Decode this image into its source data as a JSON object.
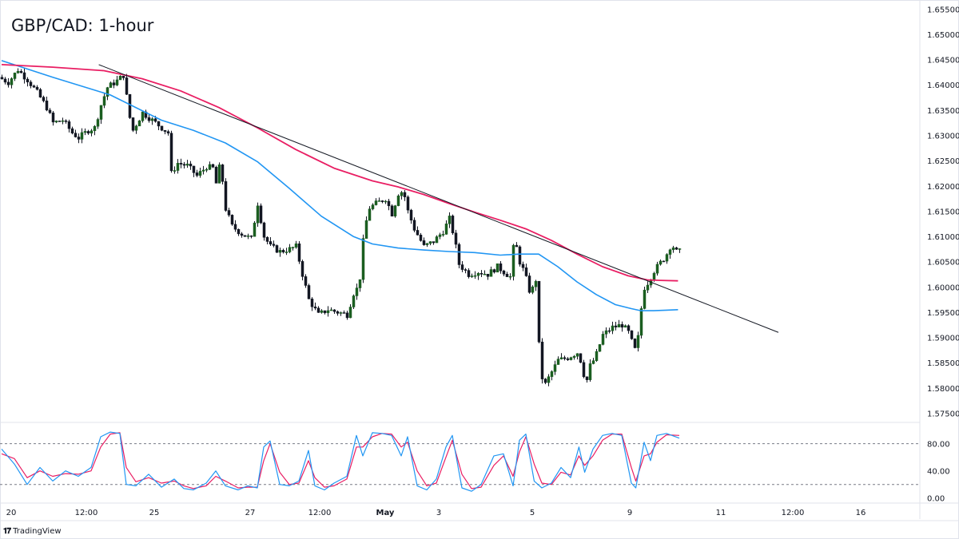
{
  "title": "GBP/CAD: 1-hour",
  "footer": {
    "brand": "TradingView",
    "logo_icon": "tradingview-logo-icon"
  },
  "colors": {
    "bull": "#26a69a",
    "bear": "#131722",
    "candle_body_bull": "#1b5e20",
    "ma_fast": "#2196f3",
    "ma_slow": "#e91e63",
    "trendline": "#131722",
    "stoch_k": "#2196f3",
    "stoch_d": "#e91e63"
  },
  "chart_data": [
    {
      "type": "candlestick",
      "title": "GBP/CAD: 1-hour",
      "ylim": [
        1.5735,
        1.656
      ],
      "y_ticks": [
        "1.65500",
        "1.65000",
        "1.64500",
        "1.64000",
        "1.63500",
        "1.63000",
        "1.62500",
        "1.62000",
        "1.61500",
        "1.61000",
        "1.60500",
        "1.60000",
        "1.59500",
        "1.59000",
        "1.58500",
        "1.58000",
        "1.57500"
      ],
      "x_ticks": [
        "20",
        "12:00",
        "25",
        "27",
        "12:00",
        "May",
        "3",
        "5",
        "9",
        "11",
        "12:00",
        "16"
      ],
      "price_path": [
        [
          0,
          1.6415
        ],
        [
          1.5,
          1.6405
        ],
        [
          3,
          1.643
        ],
        [
          4.5,
          1.641
        ],
        [
          6,
          1.6385
        ],
        [
          7.5,
          1.6355
        ],
        [
          8.5,
          1.6325
        ],
        [
          10,
          1.633
        ],
        [
          11.5,
          1.6305
        ],
        [
          12.5,
          1.6295
        ],
        [
          14,
          1.631
        ],
        [
          15,
          1.6315
        ],
        [
          16,
          1.636
        ],
        [
          17,
          1.6395
        ],
        [
          18.5,
          1.6408
        ],
        [
          19.6,
          1.642
        ],
        [
          20.3,
          1.6345
        ],
        [
          21,
          1.631
        ],
        [
          22.5,
          1.6345
        ],
        [
          24,
          1.633
        ],
        [
          25.5,
          1.6315
        ],
        [
          26.5,
          1.6305
        ],
        [
          27,
          1.6225
        ],
        [
          28,
          1.6245
        ],
        [
          29.5,
          1.624
        ],
        [
          31,
          1.622
        ],
        [
          32.5,
          1.6238
        ],
        [
          33.5,
          1.6235
        ],
        [
          34,
          1.6205
        ],
        [
          34.8,
          1.6255
        ],
        [
          35.2,
          1.6165
        ],
        [
          36.5,
          1.612
        ],
        [
          38,
          1.6105
        ],
        [
          39.5,
          1.6095
        ],
        [
          40.5,
          1.6165
        ],
        [
          41.5,
          1.61
        ],
        [
          42.5,
          1.608
        ],
        [
          44,
          1.607
        ],
        [
          45.5,
          1.6075
        ],
        [
          46.5,
          1.608
        ],
        [
          47.5,
          1.6025
        ],
        [
          48.5,
          1.5975
        ],
        [
          50,
          1.5945
        ],
        [
          51.5,
          1.5955
        ],
        [
          53,
          1.595
        ],
        [
          54.5,
          1.5945
        ],
        [
          55.8,
          1.6
        ],
        [
          56.3,
          1.599
        ],
        [
          57,
          1.609
        ],
        [
          57.8,
          1.6155
        ],
        [
          59,
          1.6165
        ],
        [
          60.5,
          1.6175
        ],
        [
          61.5,
          1.6145
        ],
        [
          62.5,
          1.6185
        ],
        [
          63.3,
          1.619
        ],
        [
          64,
          1.615
        ],
        [
          65,
          1.6115
        ],
        [
          66.5,
          1.608
        ],
        [
          68,
          1.609
        ],
        [
          69.5,
          1.611
        ],
        [
          70.5,
          1.6135
        ],
        [
          71.2,
          1.61
        ],
        [
          72,
          1.6045
        ],
        [
          73.5,
          1.6025
        ],
        [
          75,
          1.603
        ],
        [
          76.5,
          1.6025
        ],
        [
          78,
          1.604
        ],
        [
          79,
          1.603
        ],
        [
          80,
          1.602
        ],
        [
          80.7,
          1.61
        ],
        [
          81.3,
          1.6055
        ],
        [
          82,
          1.6035
        ],
        [
          82.8,
          1.6005
        ],
        [
          83.3,
          1.5975
        ],
        [
          83.9,
          1.604
        ],
        [
          84.6,
          1.586
        ],
        [
          85.2,
          1.58
        ],
        [
          86,
          1.582
        ],
        [
          87.5,
          1.5855
        ],
        [
          89,
          1.586
        ],
        [
          90.5,
          1.587
        ],
        [
          91.3,
          1.5845
        ],
        [
          91.8,
          1.58
        ],
        [
          92.3,
          1.584
        ],
        [
          93.3,
          1.586
        ],
        [
          94.5,
          1.5905
        ],
        [
          96,
          1.592
        ],
        [
          97.5,
          1.5925
        ],
        [
          98.5,
          1.591
        ],
        [
          99.2,
          1.5885
        ],
        [
          99.7,
          1.587
        ],
        [
          100.2,
          1.592
        ],
        [
          100.8,
          1.5995
        ],
        [
          101.6,
          1.601
        ],
        [
          102.4,
          1.603
        ],
        [
          103.3,
          1.6045
        ],
        [
          104.3,
          1.606
        ],
        [
          105.2,
          1.6085
        ],
        [
          106,
          1.607
        ]
      ],
      "ma_fast": [
        [
          0,
          1.6448
        ],
        [
          8,
          1.6415
        ],
        [
          17,
          1.638
        ],
        [
          25,
          1.633
        ],
        [
          30,
          1.631
        ],
        [
          35,
          1.6285
        ],
        [
          40,
          1.6248
        ],
        [
          45,
          1.6195
        ],
        [
          50,
          1.614
        ],
        [
          55,
          1.61
        ],
        [
          58,
          1.6085
        ],
        [
          62,
          1.6077
        ],
        [
          66,
          1.6073
        ],
        [
          70,
          1.607
        ],
        [
          74,
          1.6068
        ],
        [
          78,
          1.6063
        ],
        [
          81,
          1.6065
        ],
        [
          84,
          1.6065
        ],
        [
          87,
          1.604
        ],
        [
          90,
          1.601
        ],
        [
          93,
          1.5985
        ],
        [
          96,
          1.5965
        ],
        [
          98.5,
          1.5957
        ],
        [
          100,
          1.5953
        ],
        [
          102,
          1.5953
        ],
        [
          104,
          1.5954
        ],
        [
          105.8,
          1.5955
        ]
      ],
      "ma_slow": [
        [
          0,
          1.644
        ],
        [
          8,
          1.6435
        ],
        [
          16,
          1.6428
        ],
        [
          22,
          1.6412
        ],
        [
          28,
          1.6388
        ],
        [
          34,
          1.6355
        ],
        [
          40,
          1.6315
        ],
        [
          46,
          1.6272
        ],
        [
          52,
          1.6235
        ],
        [
          58,
          1.621
        ],
        [
          62,
          1.6198
        ],
        [
          66,
          1.6183
        ],
        [
          70,
          1.6165
        ],
        [
          74,
          1.6148
        ],
        [
          78,
          1.6132
        ],
        [
          82,
          1.6115
        ],
        [
          86,
          1.6092
        ],
        [
          90,
          1.6065
        ],
        [
          94,
          1.604
        ],
        [
          98,
          1.6022
        ],
        [
          101,
          1.6014
        ],
        [
          103,
          1.6013
        ],
        [
          105.8,
          1.6012
        ]
      ],
      "trendline": [
        [
          15.2,
          1.644
        ],
        [
          121.5,
          1.591
        ]
      ]
    },
    {
      "type": "line",
      "name": "stochastic",
      "ylim": [
        -5,
        110
      ],
      "y_ticks": [
        "80.00",
        "40.00",
        "0.00"
      ],
      "levels": [
        80,
        20
      ],
      "k": [
        [
          0,
          72
        ],
        [
          2,
          50
        ],
        [
          4,
          20
        ],
        [
          6,
          45
        ],
        [
          8,
          25
        ],
        [
          10,
          40
        ],
        [
          12,
          32
        ],
        [
          14,
          45
        ],
        [
          15.5,
          90
        ],
        [
          17,
          97
        ],
        [
          18.5,
          95
        ],
        [
          19.5,
          20
        ],
        [
          21,
          18
        ],
        [
          23,
          35
        ],
        [
          25,
          16
        ],
        [
          27,
          28
        ],
        [
          28.5,
          14
        ],
        [
          30,
          12
        ],
        [
          32,
          22
        ],
        [
          33.5,
          40
        ],
        [
          35,
          18
        ],
        [
          37,
          12
        ],
        [
          38.5,
          18
        ],
        [
          40,
          15
        ],
        [
          41,
          75
        ],
        [
          42,
          84
        ],
        [
          43.5,
          20
        ],
        [
          45,
          18
        ],
        [
          46.5,
          25
        ],
        [
          48,
          70
        ],
        [
          49,
          18
        ],
        [
          50.5,
          12
        ],
        [
          52,
          22
        ],
        [
          54,
          32
        ],
        [
          55.5,
          92
        ],
        [
          56.5,
          62
        ],
        [
          58,
          96
        ],
        [
          59.5,
          95
        ],
        [
          61,
          92
        ],
        [
          62.5,
          62
        ],
        [
          63.5,
          90
        ],
        [
          65,
          18
        ],
        [
          66.5,
          12
        ],
        [
          68,
          28
        ],
        [
          69.5,
          75
        ],
        [
          70.5,
          92
        ],
        [
          72,
          15
        ],
        [
          73.5,
          10
        ],
        [
          75,
          20
        ],
        [
          77,
          62
        ],
        [
          78.5,
          65
        ],
        [
          80,
          18
        ],
        [
          81,
          85
        ],
        [
          82,
          94
        ],
        [
          83.3,
          25
        ],
        [
          84.5,
          15
        ],
        [
          86,
          22
        ],
        [
          87.5,
          45
        ],
        [
          89,
          30
        ],
        [
          90.3,
          75
        ],
        [
          91.2,
          38
        ],
        [
          92.5,
          72
        ],
        [
          94,
          92
        ],
        [
          95.5,
          95
        ],
        [
          97,
          92
        ],
        [
          98.5,
          22
        ],
        [
          99.2,
          15
        ],
        [
          100.5,
          82
        ],
        [
          101.5,
          55
        ],
        [
          102.5,
          92
        ],
        [
          104,
          95
        ],
        [
          106,
          88
        ]
      ],
      "d": [
        [
          0,
          65
        ],
        [
          2,
          58
        ],
        [
          4,
          30
        ],
        [
          6,
          40
        ],
        [
          8,
          32
        ],
        [
          10,
          36
        ],
        [
          12,
          35
        ],
        [
          14,
          40
        ],
        [
          15.5,
          75
        ],
        [
          17,
          94
        ],
        [
          18.5,
          96
        ],
        [
          19.5,
          45
        ],
        [
          21,
          24
        ],
        [
          23,
          30
        ],
        [
          25,
          22
        ],
        [
          27,
          25
        ],
        [
          28.5,
          18
        ],
        [
          30,
          14
        ],
        [
          32,
          18
        ],
        [
          33.5,
          32
        ],
        [
          35,
          25
        ],
        [
          37,
          15
        ],
        [
          38.5,
          16
        ],
        [
          40,
          16
        ],
        [
          41,
          55
        ],
        [
          42,
          80
        ],
        [
          43.5,
          38
        ],
        [
          45,
          20
        ],
        [
          46.5,
          22
        ],
        [
          48,
          55
        ],
        [
          49,
          30
        ],
        [
          50.5,
          16
        ],
        [
          52,
          18
        ],
        [
          54,
          28
        ],
        [
          55.5,
          75
        ],
        [
          56.5,
          75
        ],
        [
          58,
          90
        ],
        [
          59.5,
          95
        ],
        [
          61,
          94
        ],
        [
          62.5,
          75
        ],
        [
          63.5,
          82
        ],
        [
          65,
          40
        ],
        [
          66.5,
          18
        ],
        [
          68,
          22
        ],
        [
          69.5,
          60
        ],
        [
          70.5,
          85
        ],
        [
          72,
          35
        ],
        [
          73.5,
          14
        ],
        [
          75,
          16
        ],
        [
          77,
          48
        ],
        [
          78.5,
          62
        ],
        [
          80,
          32
        ],
        [
          81,
          68
        ],
        [
          82,
          90
        ],
        [
          83.3,
          50
        ],
        [
          84.5,
          22
        ],
        [
          86,
          20
        ],
        [
          87.5,
          38
        ],
        [
          89,
          34
        ],
        [
          90.3,
          62
        ],
        [
          91.2,
          48
        ],
        [
          92.5,
          62
        ],
        [
          94,
          85
        ],
        [
          95.5,
          94
        ],
        [
          97,
          94
        ],
        [
          98.5,
          45
        ],
        [
          99.2,
          25
        ],
        [
          100.5,
          62
        ],
        [
          101.5,
          65
        ],
        [
          102.5,
          82
        ],
        [
          104,
          93
        ],
        [
          106,
          92
        ]
      ]
    }
  ]
}
